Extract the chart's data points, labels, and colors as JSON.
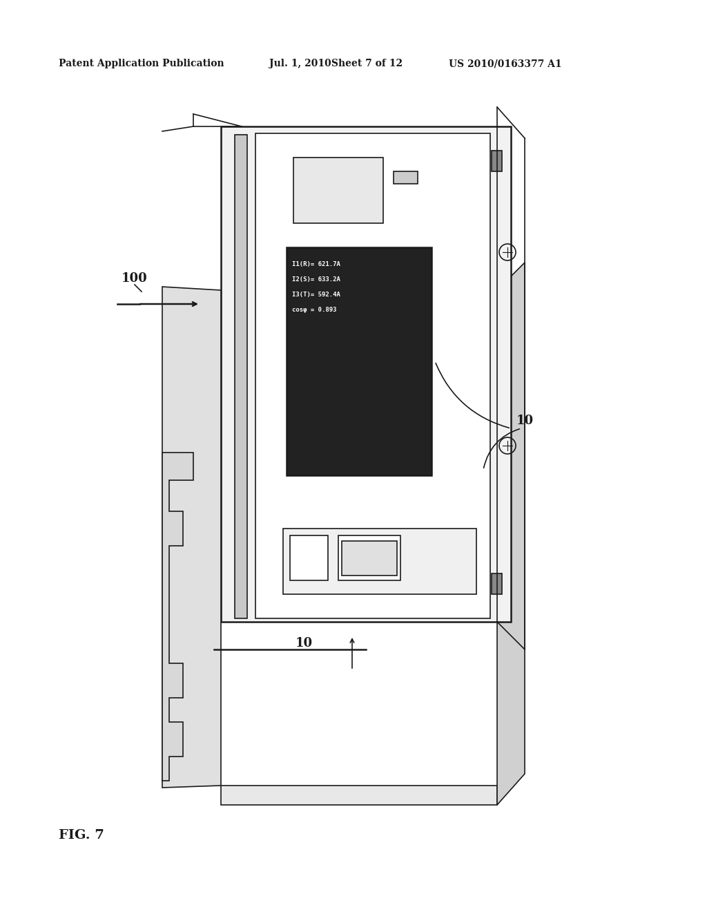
{
  "bg_color": "#ffffff",
  "header_text": "Patent Application Publication",
  "header_date": "Jul. 1, 2010",
  "header_sheet": "Sheet 7 of 12",
  "header_patent": "US 2010/0163377 A1",
  "fig_label": "FIG. 7",
  "label_100": "100",
  "label_10_side": "10",
  "label_10_bottom": "10",
  "display_lines": [
    "I1(R)= 621.7A",
    "I2(S)= 633.2A",
    "I3(T)= 592.4A",
    "cosφ = 0.893"
  ]
}
